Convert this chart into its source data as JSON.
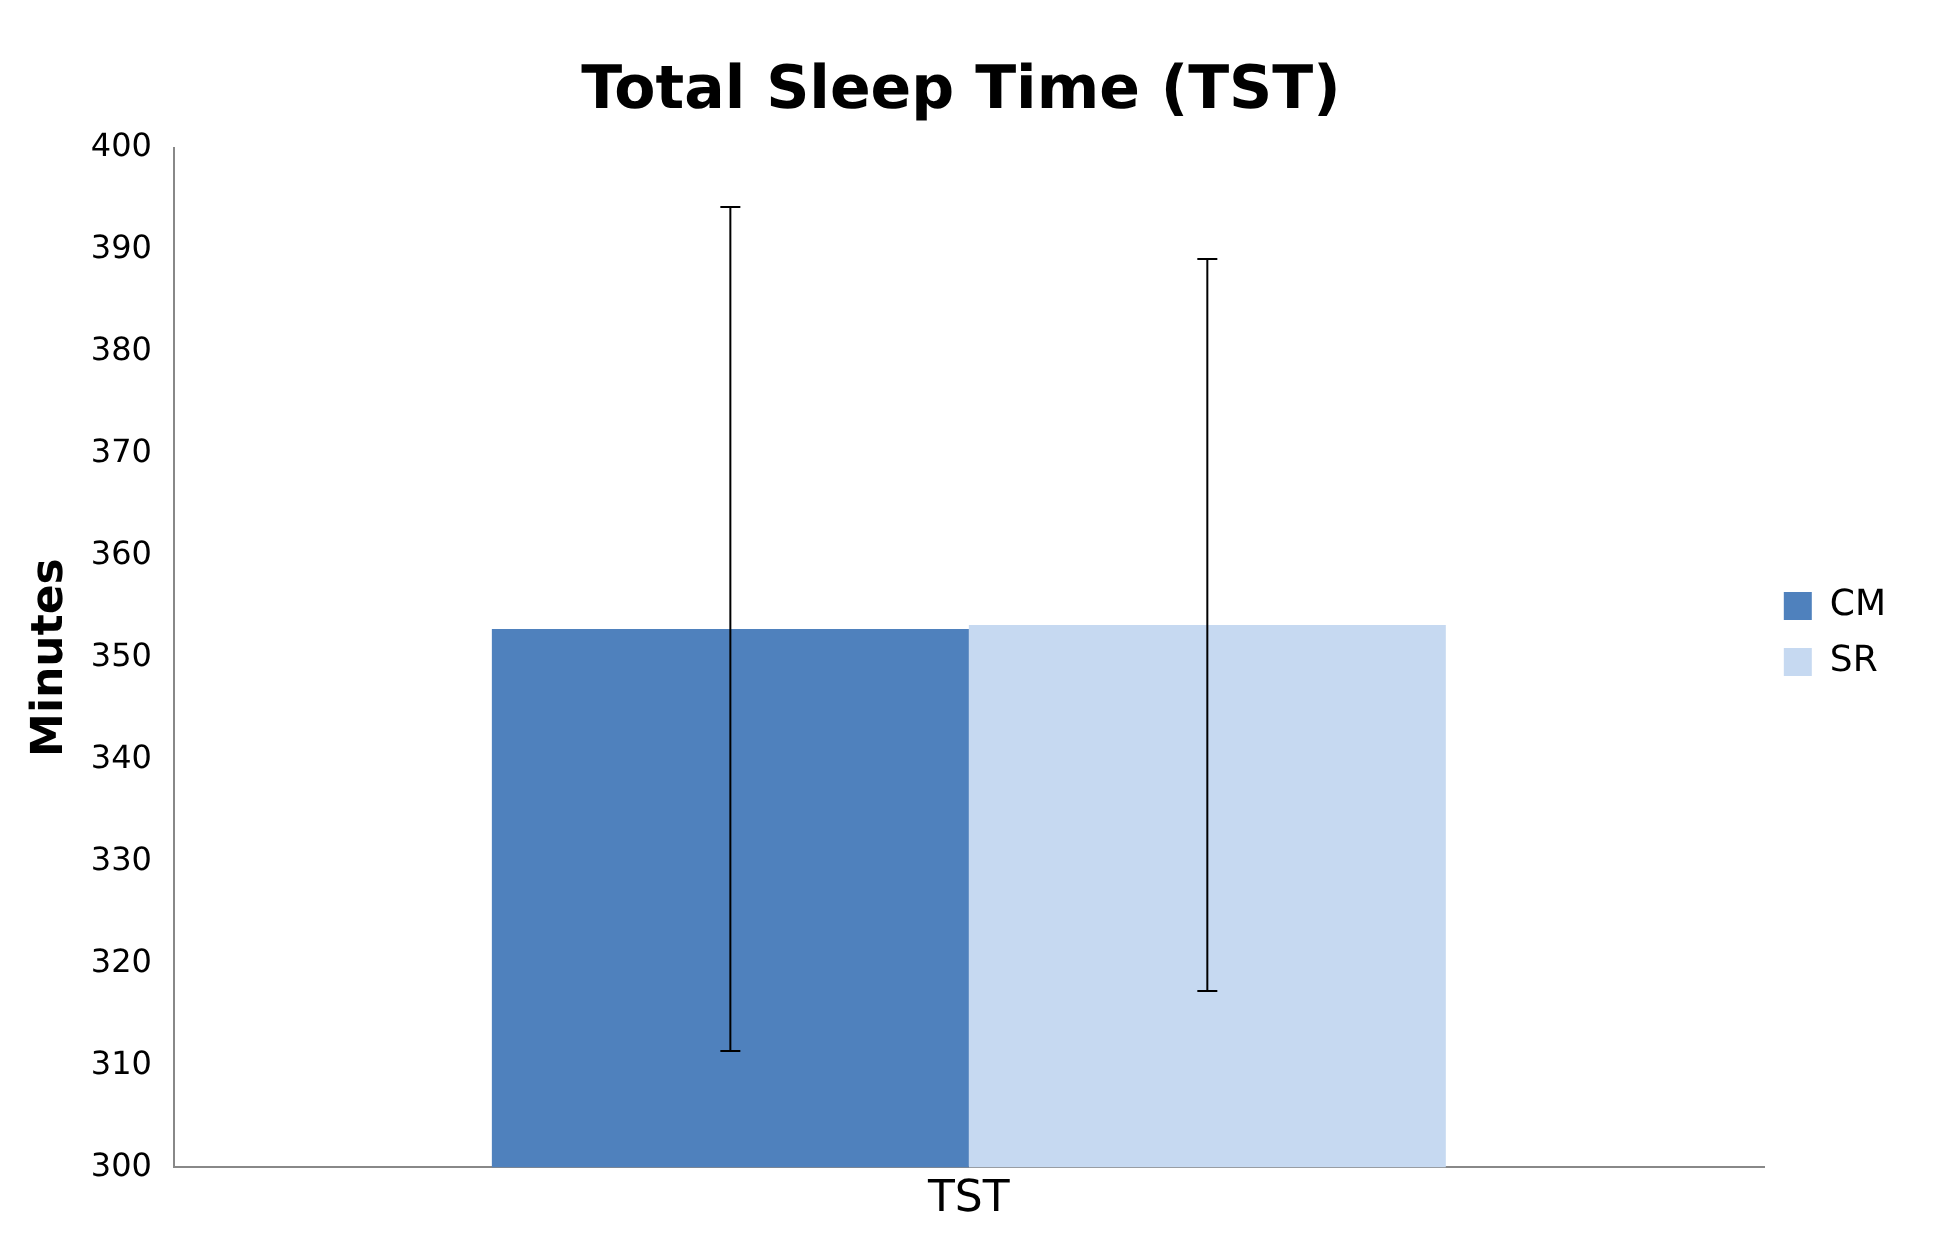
{
  "chart_data": {
    "type": "bar",
    "title": "Total Sleep Time (TST)",
    "ylabel": "Minutes",
    "categories": [
      "TST"
    ],
    "series": [
      {
        "name": "CM",
        "color": "#4f81bd",
        "values": [
          352.8
        ],
        "errors": [
          41.4
        ]
      },
      {
        "name": "SR",
        "color": "#c6d9f1",
        "values": [
          353.2
        ],
        "errors": [
          35.9
        ]
      }
    ],
    "ylim": [
      300,
      400
    ],
    "yticks": [
      300,
      310,
      320,
      330,
      340,
      350,
      360,
      370,
      380,
      390,
      400
    ],
    "grid": false,
    "legend": "right"
  }
}
